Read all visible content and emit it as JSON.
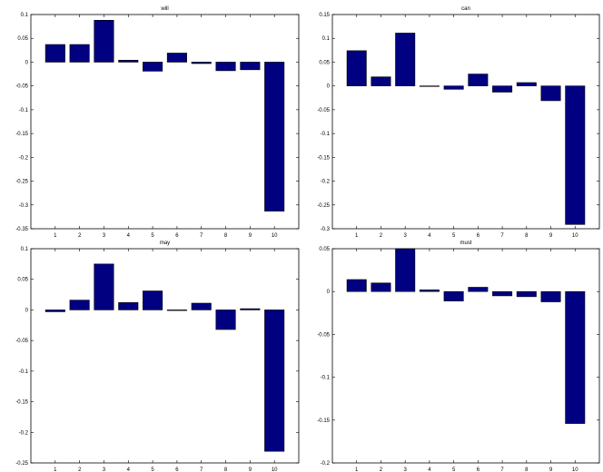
{
  "chart_data": [
    {
      "type": "bar",
      "title": "will",
      "xlabel": "",
      "ylabel": "",
      "categories": [
        "1",
        "2",
        "3",
        "4",
        "5",
        "6",
        "7",
        "8",
        "9",
        "10"
      ],
      "values": [
        0.037,
        0.037,
        0.088,
        0.004,
        -0.019,
        0.019,
        -0.003,
        -0.018,
        -0.016,
        -0.313
      ],
      "ylim": [
        -0.35,
        0.1
      ],
      "yticks": [
        "0.1",
        "0.05",
        "0",
        "-0.05",
        "-0.1",
        "-0.15",
        "-0.2",
        "-0.25",
        "-0.3",
        "-0.35"
      ],
      "grid": false,
      "bar_color": "#000080"
    },
    {
      "type": "bar",
      "title": "can",
      "xlabel": "",
      "ylabel": "",
      "categories": [
        "1",
        "2",
        "3",
        "4",
        "5",
        "6",
        "7",
        "8",
        "9",
        "10"
      ],
      "values": [
        0.074,
        0.019,
        0.111,
        0.0,
        -0.007,
        0.025,
        -0.013,
        0.007,
        -0.031,
        -0.291
      ],
      "ylim": [
        -0.3,
        0.15
      ],
      "yticks": [
        "0.15",
        "0.1",
        "0.05",
        "0",
        "-0.05",
        "-0.1",
        "-0.15",
        "-0.2",
        "-0.25",
        "-0.3"
      ],
      "grid": false,
      "bar_color": "#000080"
    },
    {
      "type": "bar",
      "title": "may",
      "xlabel": "",
      "ylabel": "",
      "categories": [
        "1",
        "2",
        "3",
        "4",
        "5",
        "6",
        "7",
        "8",
        "9",
        "10"
      ],
      "values": [
        -0.003,
        0.016,
        0.075,
        0.012,
        0.031,
        -0.001,
        0.011,
        -0.032,
        0.002,
        -0.231
      ],
      "ylim": [
        -0.25,
        0.1
      ],
      "yticks": [
        "0.1",
        "0.05",
        "0",
        "-0.05",
        "-0.1",
        "-0.15",
        "-0.2",
        "-0.25"
      ],
      "grid": false,
      "bar_color": "#000080"
    },
    {
      "type": "bar",
      "title": "must",
      "xlabel": "",
      "ylabel": "",
      "categories": [
        "1",
        "2",
        "3",
        "4",
        "5",
        "6",
        "7",
        "8",
        "9",
        "10"
      ],
      "values": [
        0.014,
        0.01,
        0.05,
        0.002,
        -0.011,
        0.005,
        -0.005,
        -0.006,
        -0.012,
        -0.154
      ],
      "ylim": [
        -0.2,
        0.05
      ],
      "yticks": [
        "0.05",
        "0",
        "-0.05",
        "-0.1",
        "-0.15",
        "-0.2"
      ],
      "grid": false,
      "bar_color": "#000080"
    }
  ]
}
